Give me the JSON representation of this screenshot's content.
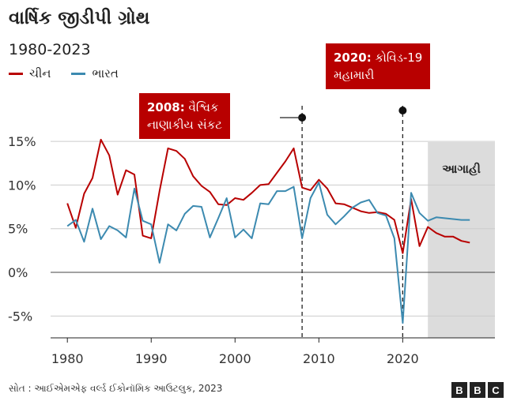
{
  "title": "વાર્ષિક જીડીપી ગ્રોથ",
  "subtitle": "1980-2023",
  "legend": [
    {
      "name": "ચીન",
      "color": "#b80000"
    },
    {
      "name": "ભારત",
      "color": "#3c8ab0"
    }
  ],
  "annotations": {
    "a2008": {
      "year_label": "2008:",
      "text_line1": "વૈશ્વિક",
      "text_line2": "નાણાકીય સંકટ",
      "x": 2008
    },
    "a2020": {
      "year_label": "2020:",
      "text_line1": "કોવિડ-19",
      "text_line2": "મહામારી",
      "x": 2020
    }
  },
  "forecast_label": "આગાહી",
  "source": "સોત : આઈએમએફ વર્લ્ડ ઈકોનૉમિક આઉટલુક, 2023",
  "bbc": [
    "B",
    "B",
    "C"
  ],
  "chart_data": {
    "type": "line",
    "title": "વાર્ષિક જીડીપી ગ્રોથ",
    "subtitle": "1980-2023",
    "xlim": [
      1978,
      2031
    ],
    "ylim": [
      -7.5,
      16
    ],
    "x_ticks": [
      1980,
      1990,
      2000,
      2010,
      2020
    ],
    "y_ticks": [
      -5,
      0,
      5,
      10,
      15
    ],
    "y_tick_labels": [
      "-5%",
      "0%",
      "5%",
      "10%",
      "15%"
    ],
    "grid": "horizontal",
    "forecast_start": 2023,
    "series": [
      {
        "name": "ચીન",
        "color": "#b80000",
        "x": [
          1980,
          1981,
          1982,
          1983,
          1984,
          1985,
          1986,
          1987,
          1988,
          1989,
          1990,
          1991,
          1992,
          1993,
          1994,
          1995,
          1996,
          1997,
          1998,
          1999,
          2000,
          2001,
          2002,
          2003,
          2004,
          2005,
          2006,
          2007,
          2008,
          2009,
          2010,
          2011,
          2012,
          2013,
          2014,
          2015,
          2016,
          2017,
          2018,
          2019,
          2020,
          2021,
          2022,
          2023,
          2024,
          2025,
          2026,
          2027,
          2028
        ],
        "values": [
          7.9,
          5.1,
          9.0,
          10.8,
          15.2,
          13.4,
          8.9,
          11.7,
          11.2,
          4.2,
          3.9,
          9.3,
          14.2,
          13.9,
          13.0,
          11.0,
          9.9,
          9.2,
          7.8,
          7.7,
          8.5,
          8.3,
          9.1,
          10.0,
          10.1,
          11.4,
          12.7,
          14.2,
          9.7,
          9.4,
          10.6,
          9.6,
          7.9,
          7.8,
          7.4,
          7.0,
          6.8,
          6.9,
          6.7,
          6.0,
          2.2,
          8.4,
          3.0,
          5.2,
          4.5,
          4.1,
          4.1,
          3.6,
          3.4
        ]
      },
      {
        "name": "ભારત",
        "color": "#3c8ab0",
        "x": [
          1980,
          1981,
          1982,
          1983,
          1984,
          1985,
          1986,
          1987,
          1988,
          1989,
          1990,
          1991,
          1992,
          1993,
          1994,
          1995,
          1996,
          1997,
          1998,
          1999,
          2000,
          2001,
          2002,
          2003,
          2004,
          2005,
          2006,
          2007,
          2008,
          2009,
          2010,
          2011,
          2012,
          2013,
          2014,
          2015,
          2016,
          2017,
          2018,
          2019,
          2020,
          2021,
          2022,
          2023,
          2024,
          2025,
          2026,
          2027,
          2028
        ],
        "values": [
          5.3,
          6.0,
          3.5,
          7.3,
          3.8,
          5.3,
          4.8,
          4.0,
          9.6,
          5.9,
          5.5,
          1.1,
          5.5,
          4.8,
          6.7,
          7.6,
          7.5,
          4.0,
          6.2,
          8.5,
          4.0,
          4.9,
          3.9,
          7.9,
          7.8,
          9.3,
          9.3,
          9.8,
          3.9,
          8.5,
          10.3,
          6.6,
          5.5,
          6.4,
          7.4,
          8.0,
          8.3,
          6.8,
          6.5,
          3.9,
          -5.8,
          9.1,
          6.8,
          5.9,
          6.3,
          6.2,
          6.1,
          6.0,
          6.0
        ]
      }
    ],
    "annotations": [
      {
        "x": 2008,
        "label": "2008: વૈશ્વિક નાણાકીય સંકટ"
      },
      {
        "x": 2020,
        "label": "2020: કોવિડ-19 મહામારી"
      }
    ]
  }
}
